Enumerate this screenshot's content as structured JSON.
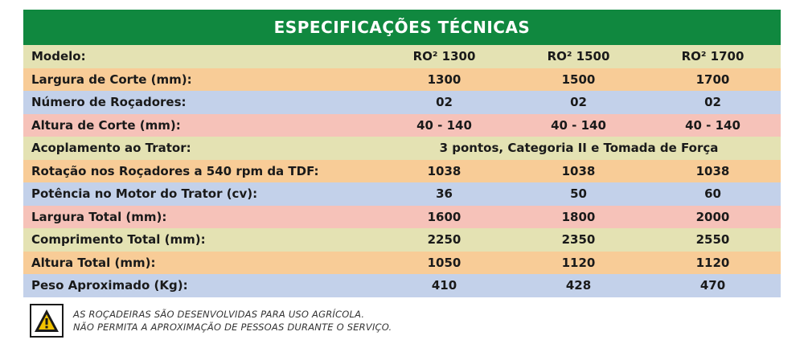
{
  "title": "ESPECIFICAÇÕES TÉCNICAS",
  "rows": [
    {
      "label": "Modelo:",
      "values": [
        "RO² 1300",
        "RO² 1500",
        "RO² 1700"
      ]
    },
    {
      "label": "Largura de Corte (mm):",
      "values": [
        "1300",
        "1500",
        "1700"
      ]
    },
    {
      "label": "Número de Roçadores:",
      "values": [
        "02",
        "02",
        "02"
      ]
    },
    {
      "label": "Altura de Corte (mm):",
      "values": [
        "40 - 140",
        "40 - 140",
        "40 - 140"
      ]
    },
    {
      "label": "Acoplamento ao Trator:",
      "span": "3 pontos, Categoria II e Tomada de Força"
    },
    {
      "label": "Rotação nos Roçadores a 540 rpm da TDF:",
      "values": [
        "1038",
        "1038",
        "1038"
      ]
    },
    {
      "label": "Potência no Motor do Trator (cv):",
      "values": [
        "36",
        "50",
        "60"
      ]
    },
    {
      "label": "Largura Total (mm):",
      "values": [
        "1600",
        "1800",
        "2000"
      ]
    },
    {
      "label": "Comprimento Total (mm):",
      "values": [
        "2250",
        "2350",
        "2550"
      ]
    },
    {
      "label": "Altura Total (mm):",
      "values": [
        "1050",
        "1120",
        "1120"
      ]
    },
    {
      "label": "Peso Aproximado (Kg):",
      "values": [
        "410",
        "428",
        "470"
      ]
    }
  ],
  "warning": {
    "icon": "warning-triangle-icon",
    "line1": "AS ROÇADEIRAS SÃO DESENVOLVIDAS PARA USO AGRÍCOLA.",
    "line2": "NÃO PERMITA A APROXIMAÇÃO DE PESSOAS DURANTE O SERVIÇO."
  },
  "colors": {
    "header": "#10883f",
    "row_olive": "#e4e2b3",
    "row_orange": "#f8cc97",
    "row_blue": "#c3d1ea",
    "row_pink": "#f6c2b9"
  }
}
